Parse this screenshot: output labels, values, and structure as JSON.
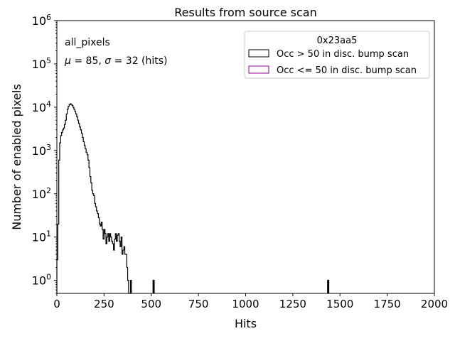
{
  "chart_data": {
    "type": "histogram",
    "title": "Results from source scan",
    "xlabel": "Hits",
    "ylabel": "Number of enabled pixels",
    "xlim": [
      0,
      2000
    ],
    "ylim": [
      0.5,
      1000000
    ],
    "yscale": "log",
    "grid": false,
    "x_ticks": [
      0,
      250,
      500,
      750,
      1000,
      1250,
      1500,
      1750,
      2000
    ],
    "x_tick_labels": [
      "0",
      "250",
      "500",
      "750",
      "1000",
      "1250",
      "1500",
      "1750",
      "2000"
    ],
    "y_ticks": [
      1,
      10,
      100,
      1000,
      10000,
      100000,
      1000000
    ],
    "y_tick_labels": [
      {
        "base": "10",
        "exp": "0"
      },
      {
        "base": "10",
        "exp": "1"
      },
      {
        "base": "10",
        "exp": "2"
      },
      {
        "base": "10",
        "exp": "3"
      },
      {
        "base": "10",
        "exp": "4"
      },
      {
        "base": "10",
        "exp": "5"
      },
      {
        "base": "10",
        "exp": "6"
      }
    ],
    "annotations": {
      "dataset": "all_pixels",
      "stats": {
        "mu_symbol": "μ",
        "mu_text": " = 85, ",
        "sigma_symbol": "σ",
        "sigma_text": " = 32 (hits)"
      }
    },
    "legend": {
      "title": "0x23aa5",
      "placement": "upper right",
      "entries": [
        {
          "label": "Occ > 50 in disc. bump scan",
          "color": "#000000"
        },
        {
          "label": "Occ <= 50 in disc. bump scan",
          "color": "#990099"
        }
      ]
    },
    "series": [
      {
        "name": "Occ > 50 in disc. bump scan",
        "color": "#000000",
        "bin_width": 5,
        "bins": [
          [
            0,
            3
          ],
          [
            5,
            20
          ],
          [
            10,
            600
          ],
          [
            15,
            1500
          ],
          [
            20,
            2200
          ],
          [
            25,
            2600
          ],
          [
            30,
            3000
          ],
          [
            35,
            3300
          ],
          [
            40,
            4000
          ],
          [
            45,
            5000
          ],
          [
            50,
            7000
          ],
          [
            55,
            9000
          ],
          [
            60,
            10500
          ],
          [
            65,
            11500
          ],
          [
            70,
            12000
          ],
          [
            75,
            11500
          ],
          [
            80,
            11000
          ],
          [
            85,
            10000
          ],
          [
            90,
            9000
          ],
          [
            95,
            8000
          ],
          [
            100,
            7000
          ],
          [
            105,
            6000
          ],
          [
            110,
            5000
          ],
          [
            115,
            4200
          ],
          [
            120,
            3500
          ],
          [
            125,
            3000
          ],
          [
            130,
            2500
          ],
          [
            135,
            2000
          ],
          [
            140,
            1600
          ],
          [
            145,
            1300
          ],
          [
            150,
            1100
          ],
          [
            155,
            900
          ],
          [
            160,
            800
          ],
          [
            165,
            600
          ],
          [
            170,
            400
          ],
          [
            175,
            250
          ],
          [
            180,
            180
          ],
          [
            185,
            120
          ],
          [
            190,
            100
          ],
          [
            195,
            90
          ],
          [
            200,
            60
          ],
          [
            205,
            50
          ],
          [
            210,
            40
          ],
          [
            215,
            35
          ],
          [
            220,
            28
          ],
          [
            225,
            20
          ],
          [
            230,
            18
          ],
          [
            235,
            22
          ],
          [
            240,
            15
          ],
          [
            245,
            9
          ],
          [
            250,
            15
          ],
          [
            255,
            12
          ],
          [
            260,
            7
          ],
          [
            265,
            10
          ],
          [
            270,
            12
          ],
          [
            275,
            8
          ],
          [
            280,
            12
          ],
          [
            285,
            10
          ],
          [
            290,
            8
          ],
          [
            295,
            7
          ],
          [
            300,
            5
          ],
          [
            305,
            9
          ],
          [
            310,
            12
          ],
          [
            315,
            8
          ],
          [
            320,
            11
          ],
          [
            325,
            12
          ],
          [
            330,
            8
          ],
          [
            335,
            6
          ],
          [
            340,
            10
          ],
          [
            345,
            4
          ],
          [
            350,
            5
          ],
          [
            355,
            6
          ],
          [
            360,
            4
          ],
          [
            365,
            4
          ],
          [
            370,
            2
          ],
          [
            375,
            1
          ],
          [
            380,
            0.5
          ],
          [
            385,
            0.5
          ],
          [
            390,
            1
          ]
        ],
        "isolated": [
          [
            510,
            1
          ],
          [
            1435,
            1
          ]
        ]
      },
      {
        "name": "Occ <= 50 in disc. bump scan",
        "color": "#990099",
        "bins": []
      }
    ]
  }
}
